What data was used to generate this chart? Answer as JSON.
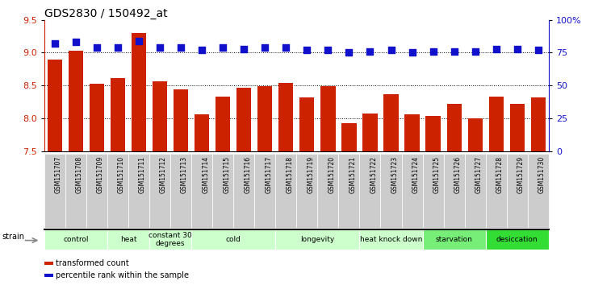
{
  "title": "GDS2830 / 150492_at",
  "samples": [
    "GSM151707",
    "GSM151708",
    "GSM151709",
    "GSM151710",
    "GSM151711",
    "GSM151712",
    "GSM151713",
    "GSM151714",
    "GSM151715",
    "GSM151716",
    "GSM151717",
    "GSM151718",
    "GSM151719",
    "GSM151720",
    "GSM151721",
    "GSM151722",
    "GSM151723",
    "GSM151724",
    "GSM151725",
    "GSM151726",
    "GSM151727",
    "GSM151728",
    "GSM151729",
    "GSM151730"
  ],
  "bar_values": [
    8.9,
    9.03,
    8.53,
    8.61,
    9.3,
    8.57,
    8.44,
    8.06,
    8.33,
    8.47,
    8.49,
    8.54,
    8.32,
    8.49,
    7.93,
    8.07,
    8.37,
    8.06,
    8.04,
    8.22,
    8.0,
    8.33,
    8.22,
    8.32
  ],
  "dot_values": [
    82,
    83,
    79,
    79,
    84,
    79,
    79,
    77,
    79,
    78,
    79,
    79,
    77,
    77,
    75,
    76,
    77,
    75,
    76,
    76,
    76,
    78,
    78,
    77
  ],
  "bar_color": "#cc2200",
  "dot_color": "#1111cc",
  "ylim_left": [
    7.5,
    9.5
  ],
  "ylim_right": [
    0,
    100
  ],
  "yticks_left": [
    7.5,
    8.0,
    8.5,
    9.0,
    9.5
  ],
  "yticks_right": [
    0,
    25,
    50,
    75,
    100
  ],
  "ytick_labels_right": [
    "0",
    "25",
    "50",
    "75",
    "100%"
  ],
  "groups": [
    {
      "label": "control",
      "start": 0,
      "end": 2,
      "color": "#ccffcc"
    },
    {
      "label": "heat",
      "start": 3,
      "end": 4,
      "color": "#ccffcc"
    },
    {
      "label": "constant 30\ndegrees",
      "start": 5,
      "end": 6,
      "color": "#ccffcc"
    },
    {
      "label": "cold",
      "start": 7,
      "end": 10,
      "color": "#ccffcc"
    },
    {
      "label": "longevity",
      "start": 11,
      "end": 14,
      "color": "#ccffcc"
    },
    {
      "label": "heat knock down",
      "start": 15,
      "end": 17,
      "color": "#ccffcc"
    },
    {
      "label": "starvation",
      "start": 18,
      "end": 20,
      "color": "#77ee77"
    },
    {
      "label": "desiccation",
      "start": 21,
      "end": 23,
      "color": "#33dd33"
    }
  ],
  "strain_label": "strain",
  "legend_bar": "transformed count",
  "legend_dot": "percentile rank within the sample",
  "bar_width": 0.7,
  "dot_size": 28,
  "background_color": "#ffffff",
  "tick_label_color_left": "#cc2200",
  "tick_label_color_right": "#1111cc",
  "label_bg_color": "#cccccc",
  "title_fontsize": 10,
  "axis_fontsize": 8,
  "label_fontsize": 5.5,
  "group_fontsize": 6.5,
  "legend_fontsize": 7
}
